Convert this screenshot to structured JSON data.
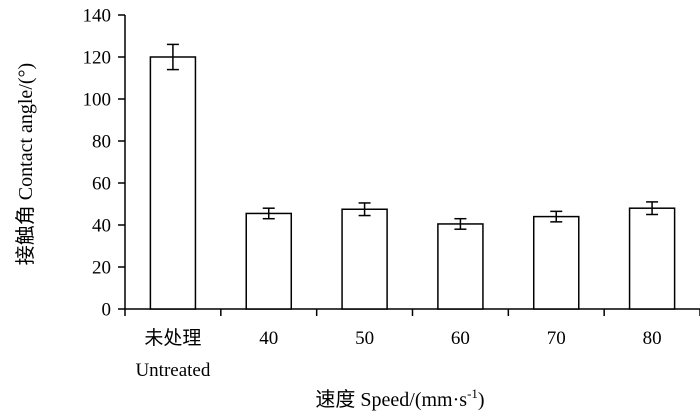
{
  "chart_data": {
    "type": "bar",
    "categories": [
      {
        "line1": "未处理",
        "line2": "Untreated"
      },
      {
        "line1": "40",
        "line2": ""
      },
      {
        "line1": "50",
        "line2": ""
      },
      {
        "line1": "60",
        "line2": ""
      },
      {
        "line1": "70",
        "line2": ""
      },
      {
        "line1": "80",
        "line2": ""
      }
    ],
    "values": [
      120,
      45.5,
      47.5,
      40.5,
      44,
      48
    ],
    "errors": [
      6,
      2.5,
      3,
      2.5,
      2.5,
      3
    ],
    "ylim": [
      0,
      140
    ],
    "yticks": [
      "0",
      "20",
      "40",
      "60",
      "80",
      "100",
      "120",
      "140"
    ],
    "ylabel": "接触角 Contact angle/(°)",
    "xlabel": {
      "main": "速度 Speed/(mm·s",
      "sup": "-1",
      "tail": ")"
    },
    "bar_fill": "#ffffff",
    "bar_stroke": "#000000",
    "grid": false,
    "legend": "none"
  }
}
